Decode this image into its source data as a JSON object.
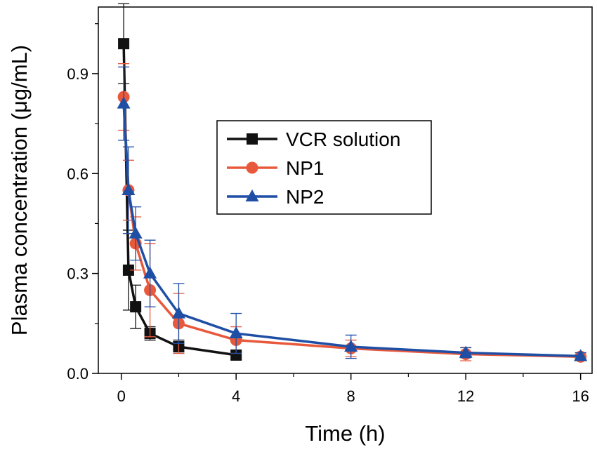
{
  "chart_data": {
    "type": "line",
    "title": "",
    "xlabel": "Time (h)",
    "ylabel": "Plasma concentration (μg/mL)",
    "xlim": [
      -0.8,
      16.4
    ],
    "ylim": [
      0,
      1.1
    ],
    "xticks": [
      0,
      4,
      8,
      12,
      16
    ],
    "xtick_labels": [
      "0",
      "4",
      "8",
      "12",
      "16"
    ],
    "yticks": [
      0.0,
      0.3,
      0.6,
      0.9
    ],
    "ytick_labels": [
      "0.0",
      "0.3",
      "0.6",
      "0.9"
    ],
    "grid": false,
    "legend_position": "upper-right",
    "series": [
      {
        "name": "VCR solution",
        "color": "#111111",
        "marker": "square",
        "x": [
          0.083,
          0.25,
          0.5,
          1,
          2,
          4
        ],
        "y": [
          0.99,
          0.31,
          0.2,
          0.12,
          0.08,
          0.055
        ],
        "err": [
          0.12,
          0.12,
          0.065,
          0.02,
          0.02,
          0.012
        ]
      },
      {
        "name": "NP1",
        "color": "#e8593c",
        "marker": "circle",
        "x": [
          0.083,
          0.25,
          0.5,
          1,
          2,
          4,
          8,
          12,
          16
        ],
        "y": [
          0.83,
          0.55,
          0.39,
          0.25,
          0.15,
          0.1,
          0.075,
          0.058,
          0.05
        ],
        "err": [
          0.1,
          0.09,
          0.08,
          0.14,
          0.09,
          0.04,
          0.025,
          0.02,
          0.012
        ]
      },
      {
        "name": "NP2",
        "color": "#1f4fa5",
        "marker": "triangle",
        "x": [
          0.083,
          0.25,
          0.5,
          1,
          2,
          4,
          8,
          12,
          16
        ],
        "y": [
          0.81,
          0.55,
          0.42,
          0.3,
          0.18,
          0.12,
          0.08,
          0.062,
          0.052
        ],
        "err": [
          0.11,
          0.13,
          0.08,
          0.1,
          0.09,
          0.06,
          0.035,
          0.015,
          0.01
        ]
      }
    ]
  }
}
